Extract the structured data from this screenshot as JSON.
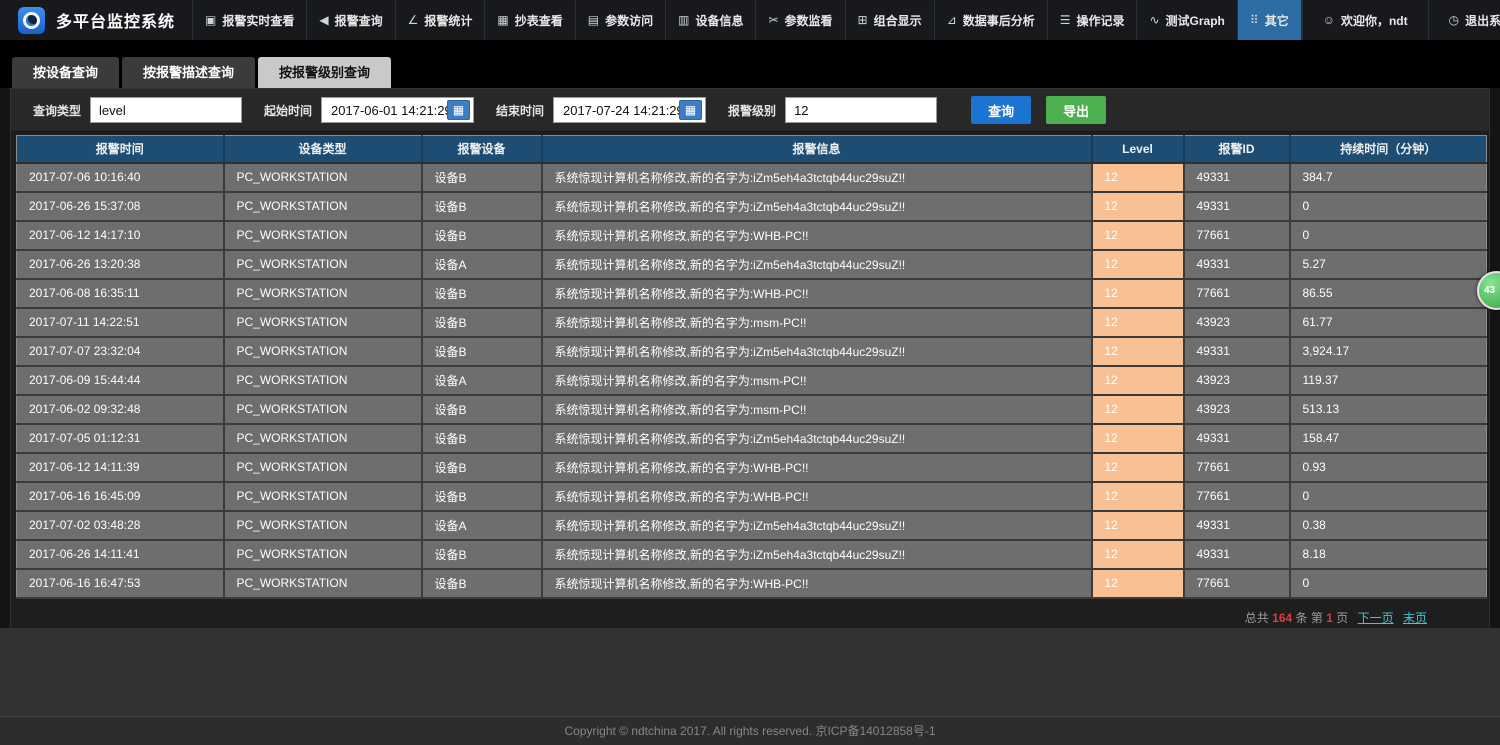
{
  "app": {
    "title": "多平台监控系统"
  },
  "nav": {
    "items": [
      {
        "label": "报警实时查看",
        "icon": "▣",
        "icon_name": "monitor-icon",
        "active": false
      },
      {
        "label": "报警查询",
        "icon": "◀",
        "icon_name": "speaker-icon",
        "active": false
      },
      {
        "label": "报警统计",
        "icon": "∠",
        "icon_name": "line-chart-icon",
        "active": false
      },
      {
        "label": "抄表查看",
        "icon": "▦",
        "icon_name": "meter-table-icon",
        "active": false
      },
      {
        "label": "参数访问",
        "icon": "▤",
        "icon_name": "form-icon",
        "active": false
      },
      {
        "label": "设备信息",
        "icon": "▥",
        "icon_name": "bar-chart-icon",
        "active": false
      },
      {
        "label": "参数监看",
        "icon": "✂",
        "icon_name": "monitor-params-icon",
        "active": false
      },
      {
        "label": "组合显示",
        "icon": "⊞",
        "icon_name": "grid-icon",
        "active": false
      },
      {
        "label": "数据事后分析",
        "icon": "⊿",
        "icon_name": "analysis-chart-icon",
        "active": false
      },
      {
        "label": "操作记录",
        "icon": "☰",
        "icon_name": "list-icon",
        "active": false
      },
      {
        "label": "测试Graph",
        "icon": "∿",
        "icon_name": "graph-icon",
        "active": false
      },
      {
        "label": "其它",
        "icon": "⠿",
        "icon_name": "more-grid-icon",
        "active": true
      }
    ],
    "welcome": "欢迎你，ndt",
    "welcome_icon": "☺",
    "logout": "退出系统",
    "logout_icon": "◷"
  },
  "tabs": [
    {
      "label": "按设备查询",
      "active": false
    },
    {
      "label": "按报警描述查询",
      "active": false
    },
    {
      "label": "按报警级别查询",
      "active": true
    }
  ],
  "filters": {
    "query_type_label": "查询类型",
    "query_type_value": "level",
    "start_label": "起始时间",
    "start_value": "2017-06-01 14:21:29",
    "end_label": "结束时间",
    "end_value": "2017-07-24 14:21:29",
    "level_label": "报警级别",
    "level_value": "12",
    "calendar_icon": "▦",
    "query_button": "查询",
    "export_button": "导出"
  },
  "table": {
    "columns": [
      "报警时间",
      "设备类型",
      "报警设备",
      "报警信息",
      "Level",
      "报警ID",
      "持续时间（分钟）"
    ],
    "rows": [
      [
        "2017-07-06 10:16:40",
        "PC_WORKSTATION",
        "设备B",
        "系统惊现计算机名称修改,新的名字为:iZm5eh4a3tctqb44uc29suZ!!",
        "12",
        "49331",
        "384.7"
      ],
      [
        "2017-06-26 15:37:08",
        "PC_WORKSTATION",
        "设备B",
        "系统惊现计算机名称修改,新的名字为:iZm5eh4a3tctqb44uc29suZ!!",
        "12",
        "49331",
        "0"
      ],
      [
        "2017-06-12 14:17:10",
        "PC_WORKSTATION",
        "设备B",
        "系统惊现计算机名称修改,新的名字为:WHB-PC!!",
        "12",
        "77661",
        "0"
      ],
      [
        "2017-06-26 13:20:38",
        "PC_WORKSTATION",
        "设备A",
        "系统惊现计算机名称修改,新的名字为:iZm5eh4a3tctqb44uc29suZ!!",
        "12",
        "49331",
        "5.27"
      ],
      [
        "2017-06-08 16:35:11",
        "PC_WORKSTATION",
        "设备B",
        "系统惊现计算机名称修改,新的名字为:WHB-PC!!",
        "12",
        "77661",
        "86.55"
      ],
      [
        "2017-07-11 14:22:51",
        "PC_WORKSTATION",
        "设备B",
        "系统惊现计算机名称修改,新的名字为:msm-PC!!",
        "12",
        "43923",
        "61.77"
      ],
      [
        "2017-07-07 23:32:04",
        "PC_WORKSTATION",
        "设备B",
        "系统惊现计算机名称修改,新的名字为:iZm5eh4a3tctqb44uc29suZ!!",
        "12",
        "49331",
        "3,924.17"
      ],
      [
        "2017-06-09 15:44:44",
        "PC_WORKSTATION",
        "设备A",
        "系统惊现计算机名称修改,新的名字为:msm-PC!!",
        "12",
        "43923",
        "119.37"
      ],
      [
        "2017-06-02 09:32:48",
        "PC_WORKSTATION",
        "设备B",
        "系统惊现计算机名称修改,新的名字为:msm-PC!!",
        "12",
        "43923",
        "513.13"
      ],
      [
        "2017-07-05 01:12:31",
        "PC_WORKSTATION",
        "设备B",
        "系统惊现计算机名称修改,新的名字为:iZm5eh4a3tctqb44uc29suZ!!",
        "12",
        "49331",
        "158.47"
      ],
      [
        "2017-06-12 14:11:39",
        "PC_WORKSTATION",
        "设备B",
        "系统惊现计算机名称修改,新的名字为:WHB-PC!!",
        "12",
        "77661",
        "0.93"
      ],
      [
        "2017-06-16 16:45:09",
        "PC_WORKSTATION",
        "设备B",
        "系统惊现计算机名称修改,新的名字为:WHB-PC!!",
        "12",
        "77661",
        "0"
      ],
      [
        "2017-07-02 03:48:28",
        "PC_WORKSTATION",
        "设备A",
        "系统惊现计算机名称修改,新的名字为:iZm5eh4a3tctqb44uc29suZ!!",
        "12",
        "49331",
        "0.38"
      ],
      [
        "2017-06-26 14:11:41",
        "PC_WORKSTATION",
        "设备B",
        "系统惊现计算机名称修改,新的名字为:iZm5eh4a3tctqb44uc29suZ!!",
        "12",
        "49331",
        "8.18"
      ],
      [
        "2017-06-16 16:47:53",
        "PC_WORKSTATION",
        "设备B",
        "系统惊现计算机名称修改,新的名字为:WHB-PC!!",
        "12",
        "77661",
        "0"
      ]
    ]
  },
  "pagination": {
    "total_prefix": "总共",
    "total_count": "164",
    "total_suffix": "条",
    "page_prefix": "第",
    "page_number": "1",
    "page_suffix": "页",
    "next_label": "下一页",
    "last_label": "末页"
  },
  "badge": {
    "label": "43"
  },
  "footer": {
    "text": "Copyright © ndtchina 2017. All rights reserved. 京ICP备14012858号-1"
  },
  "colors": {
    "nav_active": "#2d6da3",
    "query_button": "#1b74d1",
    "export_button": "#4cb050",
    "table_header": "#1e4d74",
    "level_cell": "#f9c094",
    "link": "#3fc8cf",
    "count_red": "#e23b3b",
    "badge_green": "#2da342"
  }
}
